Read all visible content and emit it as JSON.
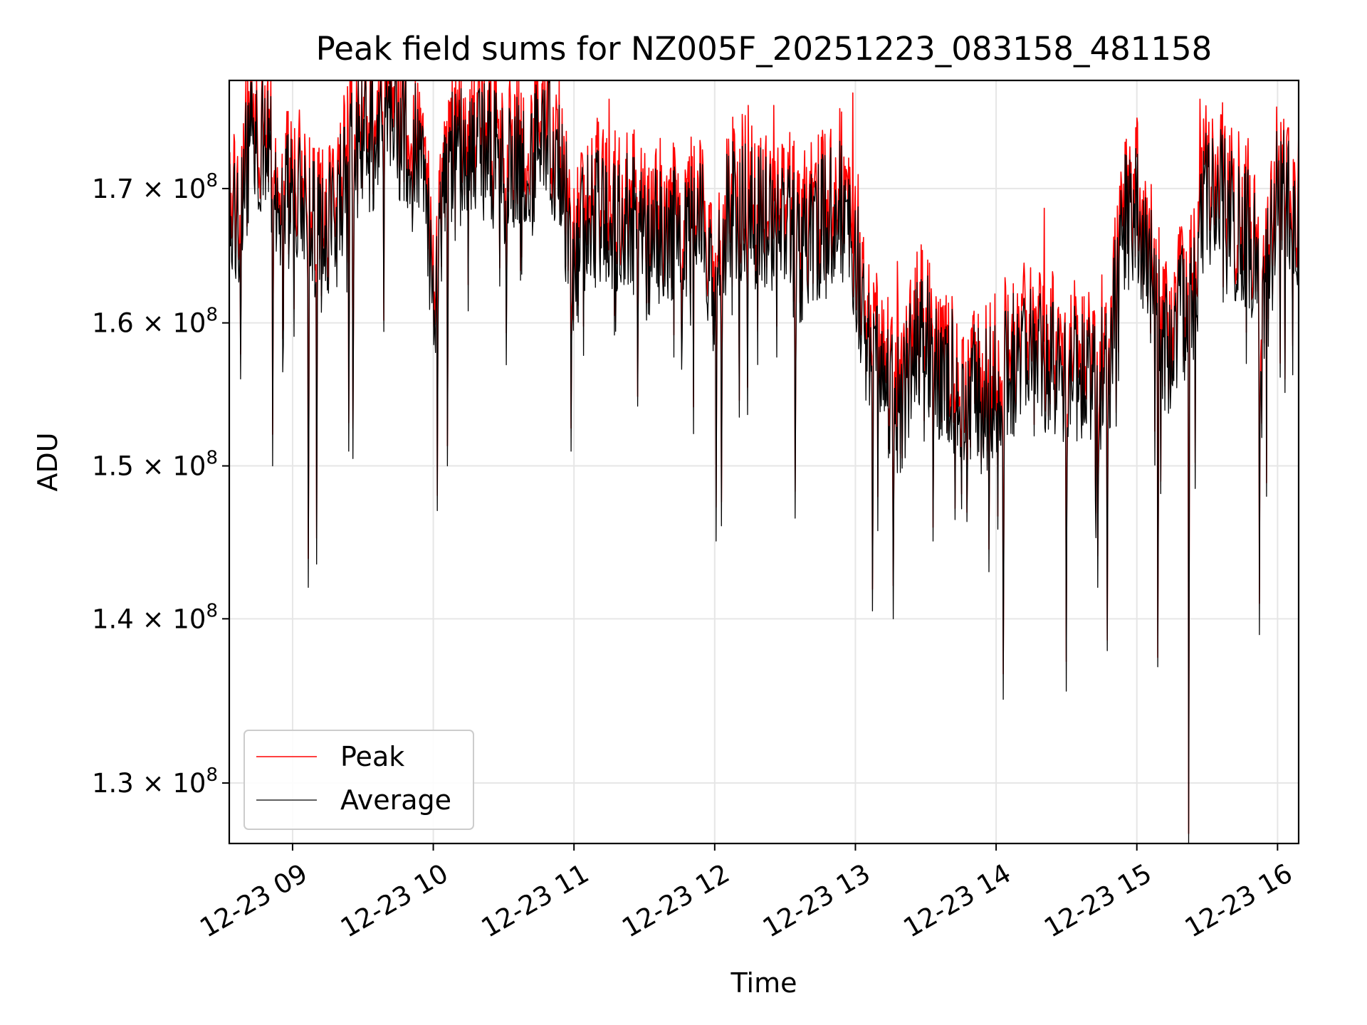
{
  "chart_data": {
    "type": "line",
    "title": "Peak field sums for NZ005F_20251223_083158_481158",
    "xlabel": "Time",
    "ylabel": "ADU",
    "yscale": "log",
    "xlim": [
      8.55,
      16.15
    ],
    "ylim": [
      126500000.0,
      178500000.0
    ],
    "grid": true,
    "legend_position": "lower-left",
    "x_ticks": [
      {
        "value": 9,
        "label": "12-23 09"
      },
      {
        "value": 10,
        "label": "12-23 10"
      },
      {
        "value": 11,
        "label": "12-23 11"
      },
      {
        "value": 12,
        "label": "12-23 12"
      },
      {
        "value": 13,
        "label": "12-23 13"
      },
      {
        "value": 14,
        "label": "12-23 14"
      },
      {
        "value": 15,
        "label": "12-23 15"
      },
      {
        "value": 16,
        "label": "12-23 16"
      }
    ],
    "y_ticks": [
      {
        "value": 130000000.0,
        "mantissa": "1.3",
        "base": "10",
        "exponent": "8"
      },
      {
        "value": 140000000.0,
        "mantissa": "1.4",
        "base": "10",
        "exponent": "8"
      },
      {
        "value": 150000000.0,
        "mantissa": "1.5",
        "base": "10",
        "exponent": "8"
      },
      {
        "value": 160000000.0,
        "mantissa": "1.6",
        "base": "10",
        "exponent": "8"
      },
      {
        "value": 170000000.0,
        "mantissa": "1.7",
        "base": "10",
        "exponent": "8"
      }
    ],
    "series": [
      {
        "name": "Peak",
        "color": "#ff0000"
      },
      {
        "name": "Average",
        "color": "#000000"
      }
    ],
    "average_trend": {
      "x": [
        8.55,
        8.6,
        8.7,
        8.8,
        8.9,
        9.0,
        9.1,
        9.2,
        9.3,
        9.4,
        9.5,
        9.6,
        9.7,
        9.8,
        9.9,
        10.0,
        10.1,
        10.2,
        10.3,
        10.4,
        10.5,
        10.6,
        10.7,
        10.8,
        10.9,
        11.0,
        11.1,
        11.2,
        11.3,
        11.4,
        11.5,
        11.6,
        11.7,
        11.8,
        11.9,
        12.0,
        12.1,
        12.2,
        12.3,
        12.4,
        12.5,
        12.6,
        12.7,
        12.8,
        12.9,
        13.0,
        13.1,
        13.2,
        13.3,
        13.4,
        13.5,
        13.6,
        13.7,
        13.8,
        13.9,
        14.0,
        14.1,
        14.2,
        14.3,
        14.4,
        14.5,
        14.6,
        14.7,
        14.8,
        14.9,
        15.0,
        15.1,
        15.2,
        15.3,
        15.4,
        15.5,
        15.6,
        15.7,
        15.8,
        15.9,
        16.0,
        16.1,
        16.15
      ],
      "y": [
        170000000.0,
        168000000.0,
        173500000.0,
        174000000.0,
        170000000.0,
        170000000.0,
        169000000.0,
        166000000.0,
        168000000.0,
        172000000.0,
        174500000.0,
        174500000.0,
        175000000.0,
        174500000.0,
        174500000.0,
        162000000.0,
        173000000.0,
        173000000.0,
        173500000.0,
        174000000.0,
        171000000.0,
        172500000.0,
        172500000.0,
        174500000.0,
        172000000.0,
        165000000.0,
        168000000.0,
        168500000.0,
        167500000.0,
        168000000.0,
        166000000.0,
        167500000.0,
        167000000.0,
        166500000.0,
        168000000.0,
        162000000.0,
        169000000.0,
        168500000.0,
        168500000.0,
        168000000.0,
        167500000.0,
        166000000.0,
        166500000.0,
        168500000.0,
        169000000.0,
        165500000.0,
        158000000.0,
        155500000.0,
        154500000.0,
        157500000.0,
        159500000.0,
        156500000.0,
        156500000.0,
        155500000.0,
        155000000.0,
        156500000.0,
        157500000.0,
        158000000.0,
        157500000.0,
        157500000.0,
        156500000.0,
        157500000.0,
        156500000.0,
        157000000.0,
        168000000.0,
        169000000.0,
        164000000.0,
        158000000.0,
        161000000.0,
        162000000.0,
        170000000.0,
        170500000.0,
        167000000.0,
        167000000.0,
        161000000.0,
        170000000.0,
        169000000.0,
        168500000.0
      ]
    },
    "dips": [
      {
        "x": 8.63,
        "y": 156000000.0
      },
      {
        "x": 8.86,
        "y": 150000000.0
      },
      {
        "x": 8.93,
        "y": 156500000.0
      },
      {
        "x": 9.11,
        "y": 142000000.0
      },
      {
        "x": 9.17,
        "y": 143500000.0
      },
      {
        "x": 9.4,
        "y": 151000000.0
      },
      {
        "x": 9.43,
        "y": 150500000.0
      },
      {
        "x": 10.03,
        "y": 147000000.0
      },
      {
        "x": 10.1,
        "y": 150000000.0
      },
      {
        "x": 10.52,
        "y": 157000000.0
      },
      {
        "x": 10.98,
        "y": 151000000.0
      },
      {
        "x": 12.01,
        "y": 145000000.0
      },
      {
        "x": 12.05,
        "y": 146000000.0
      },
      {
        "x": 12.57,
        "y": 146500000.0
      },
      {
        "x": 13.12,
        "y": 140500000.0
      },
      {
        "x": 13.27,
        "y": 140000000.0
      },
      {
        "x": 13.55,
        "y": 145000000.0
      },
      {
        "x": 13.95,
        "y": 143000000.0
      },
      {
        "x": 14.05,
        "y": 135000000.0
      },
      {
        "x": 14.5,
        "y": 135500000.0
      },
      {
        "x": 14.72,
        "y": 142000000.0
      },
      {
        "x": 14.79,
        "y": 138000000.0
      },
      {
        "x": 15.15,
        "y": 137000000.0
      },
      {
        "x": 15.37,
        "y": 126500000.0
      },
      {
        "x": 15.87,
        "y": 139000000.0
      }
    ],
    "spikes": [
      {
        "x": 8.82,
        "y": 178000000.0
      },
      {
        "x": 9.39,
        "y": 178000000.0
      },
      {
        "x": 9.72,
        "y": 178000000.0
      },
      {
        "x": 10.81,
        "y": 178500000.0
      },
      {
        "x": 11.25,
        "y": 177000000.0
      },
      {
        "x": 12.24,
        "y": 176500000.0
      },
      {
        "x": 12.42,
        "y": 176500000.0
      },
      {
        "x": 12.98,
        "y": 177500000.0
      },
      {
        "x": 13.3,
        "y": 164500000.0
      },
      {
        "x": 14.34,
        "y": 168500000.0
      },
      {
        "x": 15.0,
        "y": 175500000.0
      },
      {
        "x": 15.45,
        "y": 177000000.0
      },
      {
        "x": 16.07,
        "y": 174500000.0
      }
    ],
    "seed": 20251223,
    "n_points": 1800
  }
}
